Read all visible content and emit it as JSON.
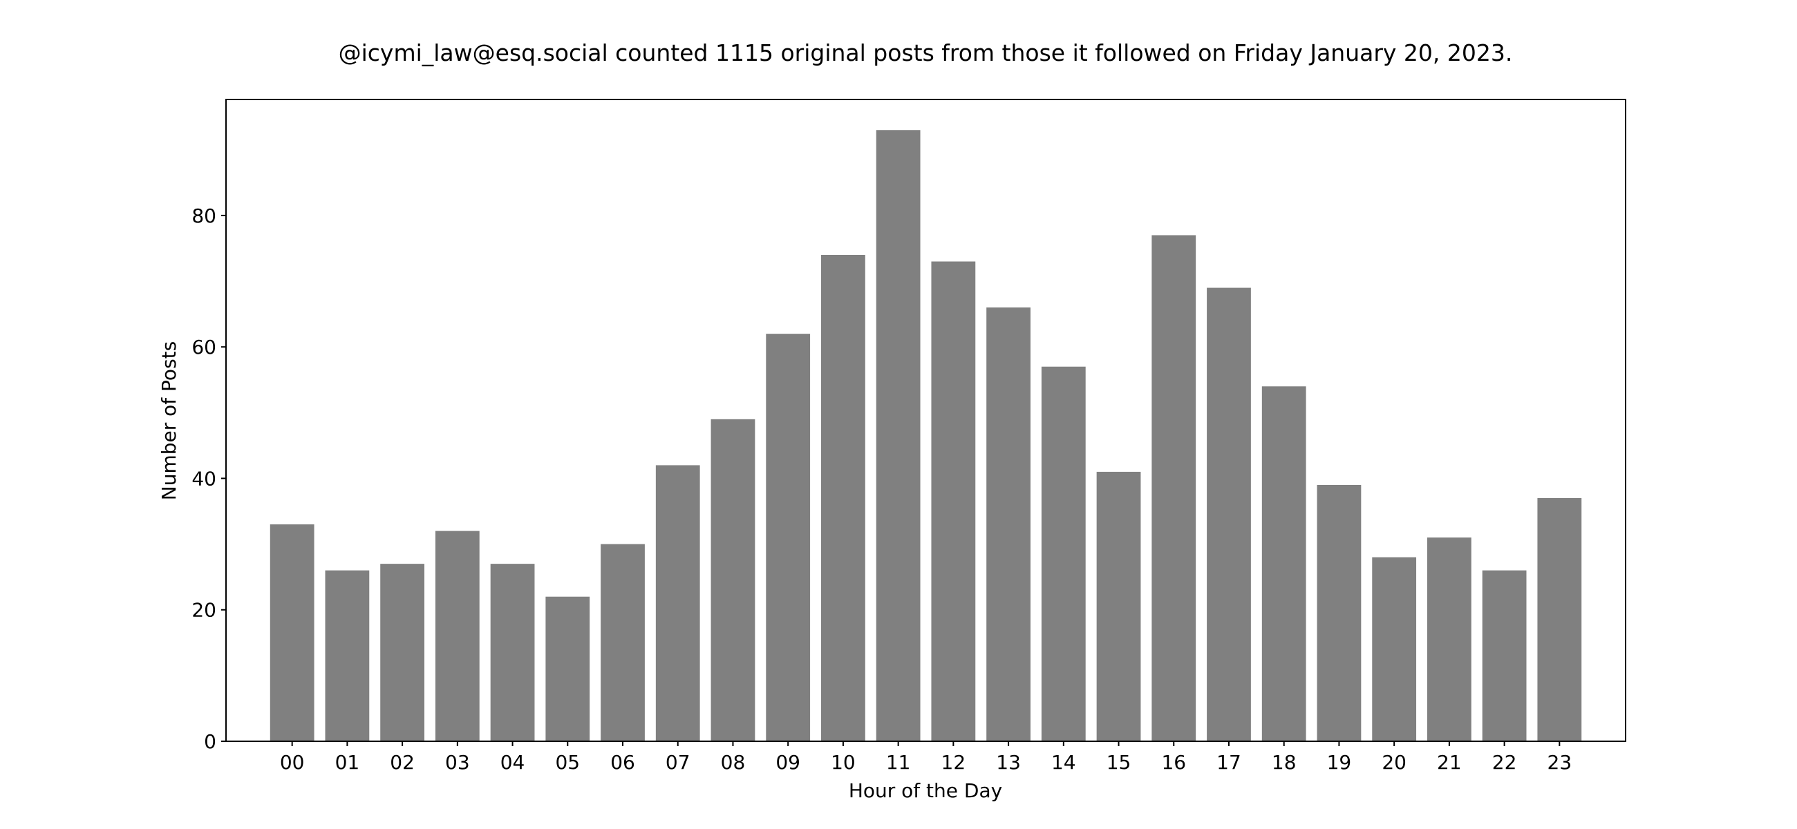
{
  "chart_data": {
    "type": "bar",
    "title": "@icymi_law@esq.social counted 1115 original posts from those it followed on Friday January 20, 2023.",
    "xlabel": "Hour of the Day",
    "ylabel": "Number of Posts",
    "categories": [
      "00",
      "01",
      "02",
      "03",
      "04",
      "05",
      "06",
      "07",
      "08",
      "09",
      "10",
      "11",
      "12",
      "13",
      "14",
      "15",
      "16",
      "17",
      "18",
      "19",
      "20",
      "21",
      "22",
      "23"
    ],
    "values": [
      33,
      26,
      27,
      32,
      27,
      22,
      30,
      42,
      49,
      62,
      74,
      93,
      73,
      66,
      57,
      41,
      77,
      69,
      54,
      39,
      28,
      31,
      26,
      37
    ],
    "ylim": [
      0,
      97.65
    ],
    "yticks": [
      0,
      20,
      40,
      60,
      80
    ],
    "grid": false,
    "legend": "none",
    "bar_color": "#808080"
  }
}
